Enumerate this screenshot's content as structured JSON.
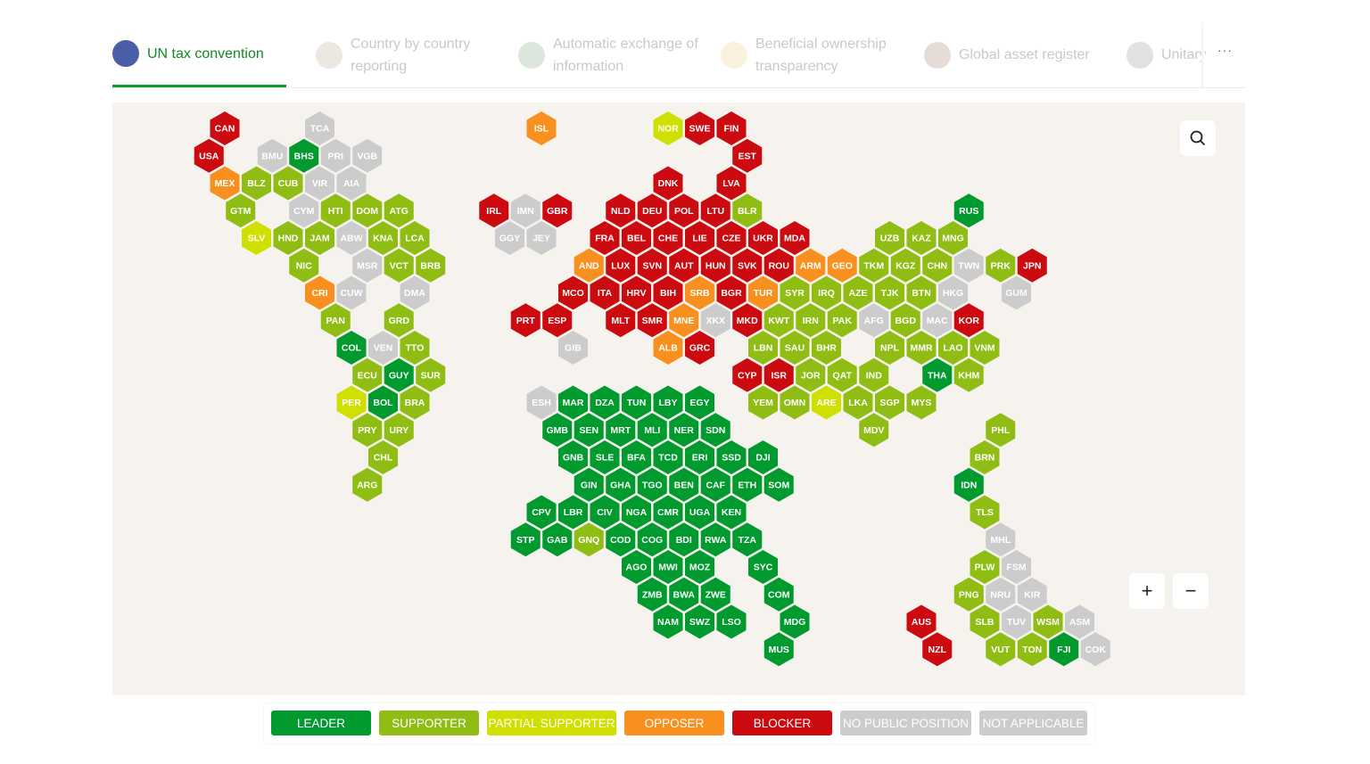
{
  "tabs": [
    {
      "label": "UN tax convention",
      "active": true,
      "icon": "un-emblem-icon",
      "color": "#4a5fa8"
    },
    {
      "label": "Country by country reporting",
      "active": false,
      "icon": "globe-icon",
      "color": "#c9b9a9"
    },
    {
      "label": "Automatic exchange of information",
      "active": false,
      "icon": "exchange-icon",
      "color": "#9fb89f"
    },
    {
      "label": "Beneficial ownership transparency",
      "active": false,
      "icon": "dollar-icon",
      "color": "#f0d7a0"
    },
    {
      "label": "Global asset register",
      "active": false,
      "icon": "register-icon",
      "color": "#b59a90"
    },
    {
      "label": "Unitary",
      "active": false,
      "icon": "location-dollar-icon",
      "color": "#aaaaaa"
    }
  ],
  "more_label": "···",
  "controls": {
    "zoom_in": "+",
    "zoom_out": "−",
    "search_icon": "search-icon"
  },
  "legend": [
    {
      "key": "L",
      "label": "LEADER",
      "color": "#009a2e"
    },
    {
      "key": "S",
      "label": "SUPPORTER",
      "color": "#8fbd14"
    },
    {
      "key": "P",
      "label": "PARTIAL SUPPORTER",
      "color": "#cfe000"
    },
    {
      "key": "O",
      "label": "OPPOSER",
      "color": "#f7901e"
    },
    {
      "key": "B",
      "label": "BLOCKER",
      "color": "#cc0b10"
    },
    {
      "key": "N",
      "label": "NO PUBLIC POSITION",
      "color": "#cccccc"
    },
    {
      "key": "X",
      "label": "NOT APPLICABLE",
      "color": "#cccccc"
    }
  ],
  "countries": [
    [
      "CAN",
      "B"
    ],
    [
      "TCA",
      "X"
    ],
    [
      "ISL",
      "O"
    ],
    [
      "NOR",
      "P"
    ],
    [
      "SWE",
      "B"
    ],
    [
      "FIN",
      "B"
    ],
    [
      "USA",
      "B"
    ],
    [
      "BMU",
      "X"
    ],
    [
      "BHS",
      "L"
    ],
    [
      "PRI",
      "X"
    ],
    [
      "VGB",
      "X"
    ],
    [
      "EST",
      "B"
    ],
    [
      "MEX",
      "O"
    ],
    [
      "BLZ",
      "S"
    ],
    [
      "CUB",
      "S"
    ],
    [
      "VIR",
      "X"
    ],
    [
      "AIA",
      "X"
    ],
    [
      "DNK",
      "B"
    ],
    [
      "LVA",
      "B"
    ],
    [
      "GTM",
      "S"
    ],
    [
      "CYM",
      "X"
    ],
    [
      "HTI",
      "S"
    ],
    [
      "DOM",
      "S"
    ],
    [
      "ATG",
      "S"
    ],
    [
      "IRL",
      "B"
    ],
    [
      "IMN",
      "X"
    ],
    [
      "GBR",
      "B"
    ],
    [
      "NLD",
      "B"
    ],
    [
      "DEU",
      "B"
    ],
    [
      "POL",
      "B"
    ],
    [
      "LTU",
      "B"
    ],
    [
      "BLR",
      "S"
    ],
    [
      "RUS",
      "L"
    ],
    [
      "SLV",
      "P"
    ],
    [
      "HND",
      "S"
    ],
    [
      "JAM",
      "S"
    ],
    [
      "ABW",
      "X"
    ],
    [
      "KNA",
      "S"
    ],
    [
      "LCA",
      "S"
    ],
    [
      "GGY",
      "X"
    ],
    [
      "JEY",
      "X"
    ],
    [
      "FRA",
      "B"
    ],
    [
      "BEL",
      "B"
    ],
    [
      "CHE",
      "B"
    ],
    [
      "LIE",
      "B"
    ],
    [
      "CZE",
      "B"
    ],
    [
      "UKR",
      "B"
    ],
    [
      "MDA",
      "B"
    ],
    [
      "UZB",
      "S"
    ],
    [
      "KAZ",
      "S"
    ],
    [
      "MNG",
      "S"
    ],
    [
      "NIC",
      "S"
    ],
    [
      "MSR",
      "X"
    ],
    [
      "VCT",
      "S"
    ],
    [
      "BRB",
      "S"
    ],
    [
      "AND",
      "O"
    ],
    [
      "LUX",
      "B"
    ],
    [
      "SVN",
      "B"
    ],
    [
      "AUT",
      "B"
    ],
    [
      "HUN",
      "B"
    ],
    [
      "SVK",
      "B"
    ],
    [
      "ROU",
      "B"
    ],
    [
      "ARM",
      "O"
    ],
    [
      "GEO",
      "O"
    ],
    [
      "TKM",
      "S"
    ],
    [
      "KGZ",
      "S"
    ],
    [
      "CHN",
      "S"
    ],
    [
      "TWN",
      "X"
    ],
    [
      "PRK",
      "S"
    ],
    [
      "JPN",
      "B"
    ],
    [
      "CRI",
      "O"
    ],
    [
      "CUW",
      "X"
    ],
    [
      "DMA",
      "N"
    ],
    [
      "MCO",
      "B"
    ],
    [
      "ITA",
      "B"
    ],
    [
      "HRV",
      "B"
    ],
    [
      "BIH",
      "B"
    ],
    [
      "SRB",
      "O"
    ],
    [
      "BGR",
      "B"
    ],
    [
      "TUR",
      "O"
    ],
    [
      "SYR",
      "S"
    ],
    [
      "IRQ",
      "S"
    ],
    [
      "AZE",
      "S"
    ],
    [
      "TJK",
      "S"
    ],
    [
      "BTN",
      "S"
    ],
    [
      "HKG",
      "X"
    ],
    [
      "GUM",
      "X"
    ],
    [
      "PAN",
      "S"
    ],
    [
      "GRD",
      "S"
    ],
    [
      "PRT",
      "B"
    ],
    [
      "ESP",
      "B"
    ],
    [
      "MLT",
      "B"
    ],
    [
      "SMR",
      "B"
    ],
    [
      "MNE",
      "O"
    ],
    [
      "XKX",
      "N"
    ],
    [
      "MKD",
      "B"
    ],
    [
      "KWT",
      "S"
    ],
    [
      "IRN",
      "S"
    ],
    [
      "PAK",
      "S"
    ],
    [
      "AFG",
      "N"
    ],
    [
      "BGD",
      "S"
    ],
    [
      "MAC",
      "X"
    ],
    [
      "KOR",
      "B"
    ],
    [
      "COL",
      "L"
    ],
    [
      "VEN",
      "N"
    ],
    [
      "TTO",
      "S"
    ],
    [
      "GIB",
      "X"
    ],
    [
      "ALB",
      "O"
    ],
    [
      "GRC",
      "B"
    ],
    [
      "LBN",
      "S"
    ],
    [
      "SAU",
      "S"
    ],
    [
      "BHR",
      "S"
    ],
    [
      "NPL",
      "S"
    ],
    [
      "MMR",
      "S"
    ],
    [
      "LAO",
      "S"
    ],
    [
      "VNM",
      "S"
    ],
    [
      "ECU",
      "S"
    ],
    [
      "GUY",
      "L"
    ],
    [
      "SUR",
      "S"
    ],
    [
      "CYP",
      "B"
    ],
    [
      "ISR",
      "B"
    ],
    [
      "JOR",
      "S"
    ],
    [
      "QAT",
      "S"
    ],
    [
      "IND",
      "S"
    ],
    [
      "THA",
      "L"
    ],
    [
      "KHM",
      "S"
    ],
    [
      "PER",
      "P"
    ],
    [
      "BOL",
      "L"
    ],
    [
      "BRA",
      "S"
    ],
    [
      "ESH",
      "X"
    ],
    [
      "MAR",
      "L"
    ],
    [
      "DZA",
      "L"
    ],
    [
      "TUN",
      "L"
    ],
    [
      "LBY",
      "L"
    ],
    [
      "EGY",
      "L"
    ],
    [
      "YEM",
      "S"
    ],
    [
      "OMN",
      "S"
    ],
    [
      "ARE",
      "P"
    ],
    [
      "LKA",
      "S"
    ],
    [
      "SGP",
      "S"
    ],
    [
      "MYS",
      "S"
    ],
    [
      "PRY",
      "S"
    ],
    [
      "URY",
      "S"
    ],
    [
      "GMB",
      "L"
    ],
    [
      "SEN",
      "L"
    ],
    [
      "MRT",
      "L"
    ],
    [
      "MLI",
      "L"
    ],
    [
      "NER",
      "L"
    ],
    [
      "SDN",
      "L"
    ],
    [
      "MDV",
      "S"
    ],
    [
      "PHL",
      "S"
    ],
    [
      "CHL",
      "S"
    ],
    [
      "GNB",
      "L"
    ],
    [
      "SLE",
      "L"
    ],
    [
      "BFA",
      "L"
    ],
    [
      "TCD",
      "L"
    ],
    [
      "ERI",
      "L"
    ],
    [
      "SSD",
      "L"
    ],
    [
      "DJI",
      "L"
    ],
    [
      "BRN",
      "S"
    ],
    [
      "ARG",
      "S"
    ],
    [
      "GIN",
      "L"
    ],
    [
      "GHA",
      "L"
    ],
    [
      "TGO",
      "L"
    ],
    [
      "BEN",
      "L"
    ],
    [
      "CAF",
      "L"
    ],
    [
      "ETH",
      "L"
    ],
    [
      "SOM",
      "L"
    ],
    [
      "IDN",
      "L"
    ],
    [
      "CPV",
      "L"
    ],
    [
      "LBR",
      "L"
    ],
    [
      "CIV",
      "L"
    ],
    [
      "NGA",
      "L"
    ],
    [
      "CMR",
      "L"
    ],
    [
      "UGA",
      "L"
    ],
    [
      "KEN",
      "L"
    ],
    [
      "TLS",
      "S"
    ],
    [
      "STP",
      "L"
    ],
    [
      "GAB",
      "L"
    ],
    [
      "GNQ",
      "S"
    ],
    [
      "COD",
      "L"
    ],
    [
      "COG",
      "L"
    ],
    [
      "BDI",
      "L"
    ],
    [
      "RWA",
      "L"
    ],
    [
      "TZA",
      "L"
    ],
    [
      "MHL",
      "N"
    ],
    [
      "AGO",
      "L"
    ],
    [
      "MWI",
      "L"
    ],
    [
      "MOZ",
      "L"
    ],
    [
      "SYC",
      "L"
    ],
    [
      "PLW",
      "S"
    ],
    [
      "FSM",
      "N"
    ],
    [
      "ZMB",
      "L"
    ],
    [
      "BWA",
      "L"
    ],
    [
      "ZWE",
      "L"
    ],
    [
      "COM",
      "L"
    ],
    [
      "PNG",
      "S"
    ],
    [
      "NRU",
      "N"
    ],
    [
      "KIR",
      "N"
    ],
    [
      "NAM",
      "L"
    ],
    [
      "SWZ",
      "L"
    ],
    [
      "LSO",
      "L"
    ],
    [
      "MDG",
      "L"
    ],
    [
      "AUS",
      "B"
    ],
    [
      "SLB",
      "S"
    ],
    [
      "TUV",
      "N"
    ],
    [
      "WSM",
      "S"
    ],
    [
      "ASM",
      "X"
    ],
    [
      "MUS",
      "L"
    ],
    [
      "NZL",
      "B"
    ],
    [
      "VUT",
      "S"
    ],
    [
      "TON",
      "S"
    ],
    [
      "FJI",
      "L"
    ],
    [
      "COK",
      "X"
    ]
  ]
}
